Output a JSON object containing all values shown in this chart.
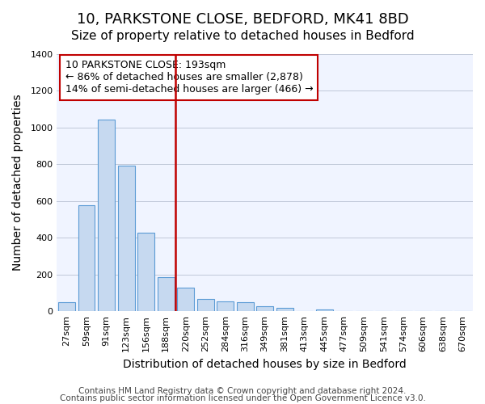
{
  "title": "10, PARKSTONE CLOSE, BEDFORD, MK41 8BD",
  "subtitle": "Size of property relative to detached houses in Bedford",
  "xlabel": "Distribution of detached houses by size in Bedford",
  "ylabel": "Number of detached properties",
  "bar_labels": [
    "27sqm",
    "59sqm",
    "91sqm",
    "123sqm",
    "156sqm",
    "188sqm",
    "220sqm",
    "252sqm",
    "284sqm",
    "316sqm",
    "349sqm",
    "381sqm",
    "413sqm",
    "445sqm",
    "477sqm",
    "509sqm",
    "541sqm",
    "574sqm",
    "606sqm",
    "638sqm",
    "670sqm"
  ],
  "bar_heights": [
    50,
    575,
    1040,
    790,
    425,
    185,
    130,
    65,
    55,
    50,
    25,
    20,
    0,
    10,
    0,
    0,
    0,
    0,
    0,
    0,
    0
  ],
  "bar_color": "#c6d9f0",
  "bar_edge_color": "#5b9bd5",
  "vline_x": 5.5,
  "vline_color": "#c00000",
  "annotation_title": "10 PARKSTONE CLOSE: 193sqm",
  "annotation_line1": "← 86% of detached houses are smaller (2,878)",
  "annotation_line2": "14% of semi-detached houses are larger (466) →",
  "annotation_box_color": "#ffffff",
  "annotation_box_edge": "#c00000",
  "ylim": [
    0,
    1400
  ],
  "yticks": [
    0,
    200,
    400,
    600,
    800,
    1000,
    1200,
    1400
  ],
  "footer1": "Contains HM Land Registry data © Crown copyright and database right 2024.",
  "footer2": "Contains public sector information licensed under the Open Government Licence v3.0.",
  "title_fontsize": 13,
  "subtitle_fontsize": 11,
  "xlabel_fontsize": 10,
  "ylabel_fontsize": 10,
  "tick_fontsize": 8,
  "footer_fontsize": 7.5,
  "annotation_fontsize": 9
}
